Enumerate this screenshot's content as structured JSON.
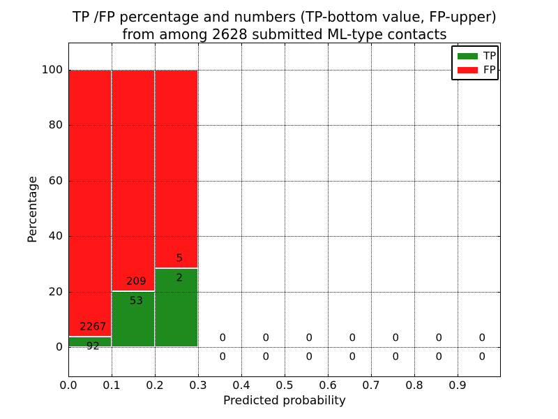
{
  "chart_data": {
    "type": "bar",
    "stacked": true,
    "title_line1": "TP /FP percentage and numbers (TP-bottom value, FP-upper)",
    "title_line2": "from among 2628 submitted ML-type contacts",
    "xlabel": "Predicted probability",
    "ylabel": "Percentage",
    "xlim": [
      0.0,
      1.0
    ],
    "ylim": [
      -10.8,
      109.8
    ],
    "xtick_labels": [
      "0.0",
      "0.1",
      "0.2",
      "0.3",
      "0.4",
      "0.5",
      "0.6",
      "0.7",
      "0.8",
      "0.9"
    ],
    "ytick_labels": [
      "0",
      "20",
      "40",
      "60",
      "80",
      "100"
    ],
    "grid": "dotted-black-over-bars",
    "colors": {
      "tp": "#1f8b1f",
      "fp": "#ff1616"
    },
    "legend": {
      "position": "upper-right",
      "entries": [
        {
          "label": "TP",
          "color": "#1f8b1f"
        },
        {
          "label": "FP",
          "color": "#ff1616"
        }
      ]
    },
    "bins": [
      {
        "x_range": [
          0.0,
          0.1
        ],
        "tp_count": 92,
        "fp_count": 2267,
        "tp_pct": 3.9,
        "fp_pct": 96.1
      },
      {
        "x_range": [
          0.1,
          0.2
        ],
        "tp_count": 53,
        "fp_count": 209,
        "tp_pct": 20.2,
        "fp_pct": 79.8
      },
      {
        "x_range": [
          0.2,
          0.3
        ],
        "tp_count": 2,
        "fp_count": 5,
        "tp_pct": 28.6,
        "fp_pct": 71.4
      },
      {
        "x_range": [
          0.3,
          0.4
        ],
        "tp_count": 0,
        "fp_count": 0,
        "tp_pct": 0,
        "fp_pct": 0
      },
      {
        "x_range": [
          0.4,
          0.5
        ],
        "tp_count": 0,
        "fp_count": 0,
        "tp_pct": 0,
        "fp_pct": 0
      },
      {
        "x_range": [
          0.5,
          0.6
        ],
        "tp_count": 0,
        "fp_count": 0,
        "tp_pct": 0,
        "fp_pct": 0
      },
      {
        "x_range": [
          0.6,
          0.7
        ],
        "tp_count": 0,
        "fp_count": 0,
        "tp_pct": 0,
        "fp_pct": 0
      },
      {
        "x_range": [
          0.7,
          0.8
        ],
        "tp_count": 0,
        "fp_count": 0,
        "tp_pct": 0,
        "fp_pct": 0
      },
      {
        "x_range": [
          0.8,
          0.9
        ],
        "tp_count": 0,
        "fp_count": 0,
        "tp_pct": 0,
        "fp_pct": 0
      },
      {
        "x_range": [
          0.9,
          1.0
        ],
        "tp_count": 0,
        "fp_count": 0,
        "tp_pct": 0,
        "fp_pct": 0
      }
    ]
  }
}
